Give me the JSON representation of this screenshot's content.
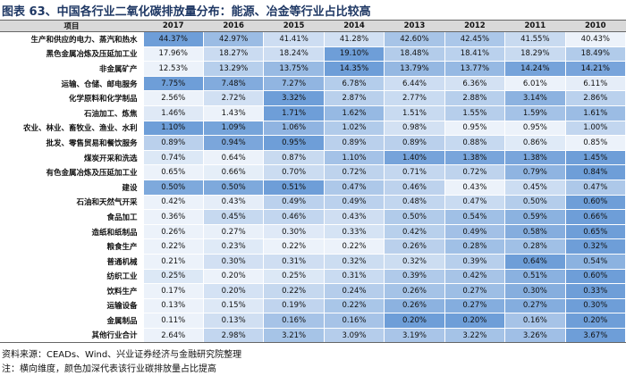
{
  "title": "图表 63、中国各行业二氧化碳排放量分布：能源、冶金等行业占比较高",
  "table": {
    "header": [
      "项目",
      "2017",
      "2016",
      "2015",
      "2014",
      "2013",
      "2012",
      "2011",
      "2010"
    ],
    "rows": [
      [
        "生产和供应的电力、蒸汽和热水",
        "44.37%",
        "42.97%",
        "41.41%",
        "41.28%",
        "42.60%",
        "42.45%",
        "41.55%",
        "40.43%"
      ],
      [
        "黑色金属冶炼及压延加工业",
        "17.96%",
        "18.27%",
        "18.24%",
        "19.10%",
        "18.48%",
        "18.41%",
        "18.29%",
        "18.49%"
      ],
      [
        "非金属矿产",
        "12.53%",
        "13.29%",
        "13.75%",
        "14.35%",
        "13.79%",
        "13.77%",
        "14.24%",
        "14.21%"
      ],
      [
        "运输、仓储、邮电服务",
        "7.75%",
        "7.48%",
        "7.27%",
        "6.78%",
        "6.44%",
        "6.36%",
        "6.01%",
        "6.11%"
      ],
      [
        "化学原料和化学制品",
        "2.56%",
        "2.72%",
        "3.32%",
        "2.87%",
        "2.77%",
        "2.88%",
        "3.14%",
        "2.86%"
      ],
      [
        "石油加工、炼焦",
        "1.46%",
        "1.43%",
        "1.71%",
        "1.62%",
        "1.51%",
        "1.55%",
        "1.59%",
        "1.61%"
      ],
      [
        "农业、林业、畜牧业、渔业、水利",
        "1.10%",
        "1.09%",
        "1.06%",
        "1.02%",
        "0.98%",
        "0.95%",
        "0.95%",
        "1.00%"
      ],
      [
        "批发、零售贸易和餐饮服务",
        "0.89%",
        "0.94%",
        "0.95%",
        "0.89%",
        "0.89%",
        "0.88%",
        "0.86%",
        "0.85%"
      ],
      [
        "煤炭开采和洗选",
        "0.74%",
        "0.64%",
        "0.87%",
        "1.10%",
        "1.40%",
        "1.38%",
        "1.38%",
        "1.45%"
      ],
      [
        "有色金属冶炼及压延加工业",
        "0.65%",
        "0.66%",
        "0.70%",
        "0.72%",
        "0.71%",
        "0.72%",
        "0.79%",
        "0.84%"
      ],
      [
        "建设",
        "0.50%",
        "0.50%",
        "0.51%",
        "0.47%",
        "0.46%",
        "0.43%",
        "0.45%",
        "0.47%"
      ],
      [
        "石油和天然气开采",
        "0.42%",
        "0.43%",
        "0.49%",
        "0.49%",
        "0.48%",
        "0.47%",
        "0.50%",
        "0.60%"
      ],
      [
        "食品加工",
        "0.36%",
        "0.45%",
        "0.46%",
        "0.43%",
        "0.50%",
        "0.54%",
        "0.59%",
        "0.66%"
      ],
      [
        "造纸和纸制品",
        "0.26%",
        "0.27%",
        "0.30%",
        "0.33%",
        "0.42%",
        "0.49%",
        "0.58%",
        "0.65%"
      ],
      [
        "粮食生产",
        "0.22%",
        "0.23%",
        "0.22%",
        "0.22%",
        "0.26%",
        "0.28%",
        "0.28%",
        "0.32%"
      ],
      [
        "普通机械",
        "0.21%",
        "0.30%",
        "0.31%",
        "0.32%",
        "0.32%",
        "0.39%",
        "0.64%",
        "0.54%"
      ],
      [
        "纺织工业",
        "0.25%",
        "0.20%",
        "0.25%",
        "0.31%",
        "0.39%",
        "0.42%",
        "0.51%",
        "0.60%"
      ],
      [
        "饮料生产",
        "0.17%",
        "0.20%",
        "0.22%",
        "0.24%",
        "0.26%",
        "0.27%",
        "0.30%",
        "0.33%"
      ],
      [
        "运输设备",
        "0.13%",
        "0.15%",
        "0.19%",
        "0.22%",
        "0.26%",
        "0.27%",
        "0.27%",
        "0.30%"
      ],
      [
        "金属制品",
        "0.11%",
        "0.13%",
        "0.16%",
        "0.16%",
        "0.20%",
        "0.20%",
        "0.16%",
        "0.20%"
      ],
      [
        "其他行业合计",
        "2.64%",
        "2.98%",
        "3.21%",
        "3.09%",
        "3.19%",
        "3.22%",
        "3.26%",
        "3.67%"
      ]
    ]
  },
  "footer": {
    "source": "资料来源：CEADs、Wind、兴业证券经济与金融研究院整理",
    "note": "注：横向维度，颜色加深代表该行业碳排放量占比提高"
  }
}
